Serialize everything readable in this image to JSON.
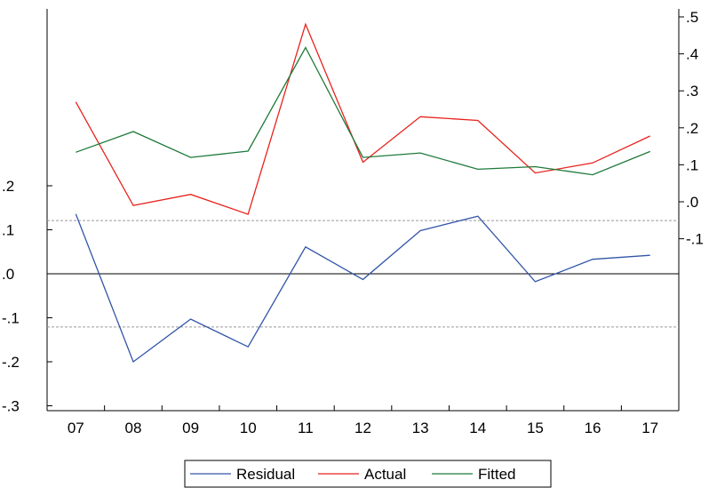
{
  "chart_data": {
    "type": "line",
    "title": "",
    "categories": [
      "07",
      "08",
      "09",
      "10",
      "11",
      "12",
      "13",
      "14",
      "15",
      "16",
      "17"
    ],
    "left_axis": {
      "ticks": [
        0.2,
        0.1,
        0.0,
        -0.1,
        -0.2,
        -0.3
      ],
      "tick_labels": [
        ".2",
        ".1",
        ".0",
        "-.1",
        "-.2",
        "-.3"
      ],
      "range": [
        -0.3,
        0.2
      ],
      "zero_line": 0.0,
      "reference_lines": [
        0.121,
        -0.121
      ]
    },
    "right_axis": {
      "ticks": [
        0.5,
        0.4,
        0.3,
        0.2,
        0.1,
        0.0,
        -0.1
      ],
      "tick_labels": [
        ".5",
        ".4",
        ".3",
        ".2",
        ".1",
        ".0",
        "-.1"
      ],
      "range": [
        -0.1,
        0.5
      ]
    },
    "series": [
      {
        "name": "Residual",
        "axis": "left",
        "color": "#3355a8",
        "values": [
          0.136,
          -0.2,
          -0.103,
          -0.166,
          0.061,
          -0.013,
          0.098,
          0.131,
          -0.018,
          0.033,
          0.042
        ]
      },
      {
        "name": "Actual",
        "axis": "right",
        "color": "#e8221c",
        "values": [
          0.27,
          -0.01,
          0.02,
          -0.034,
          0.48,
          0.107,
          0.23,
          0.22,
          0.078,
          0.105,
          0.178
        ]
      },
      {
        "name": "Fitted",
        "axis": "right",
        "color": "#1e7a3a",
        "values": [
          0.134,
          0.19,
          0.12,
          0.137,
          0.417,
          0.12,
          0.132,
          0.088,
          0.095,
          0.073,
          0.136
        ]
      }
    ],
    "legend": {
      "position": "bottom-center"
    },
    "grid": false
  },
  "colors": {
    "axis": "#000000",
    "reference_line": "#9a9a9a",
    "zero_line": "#000000"
  }
}
